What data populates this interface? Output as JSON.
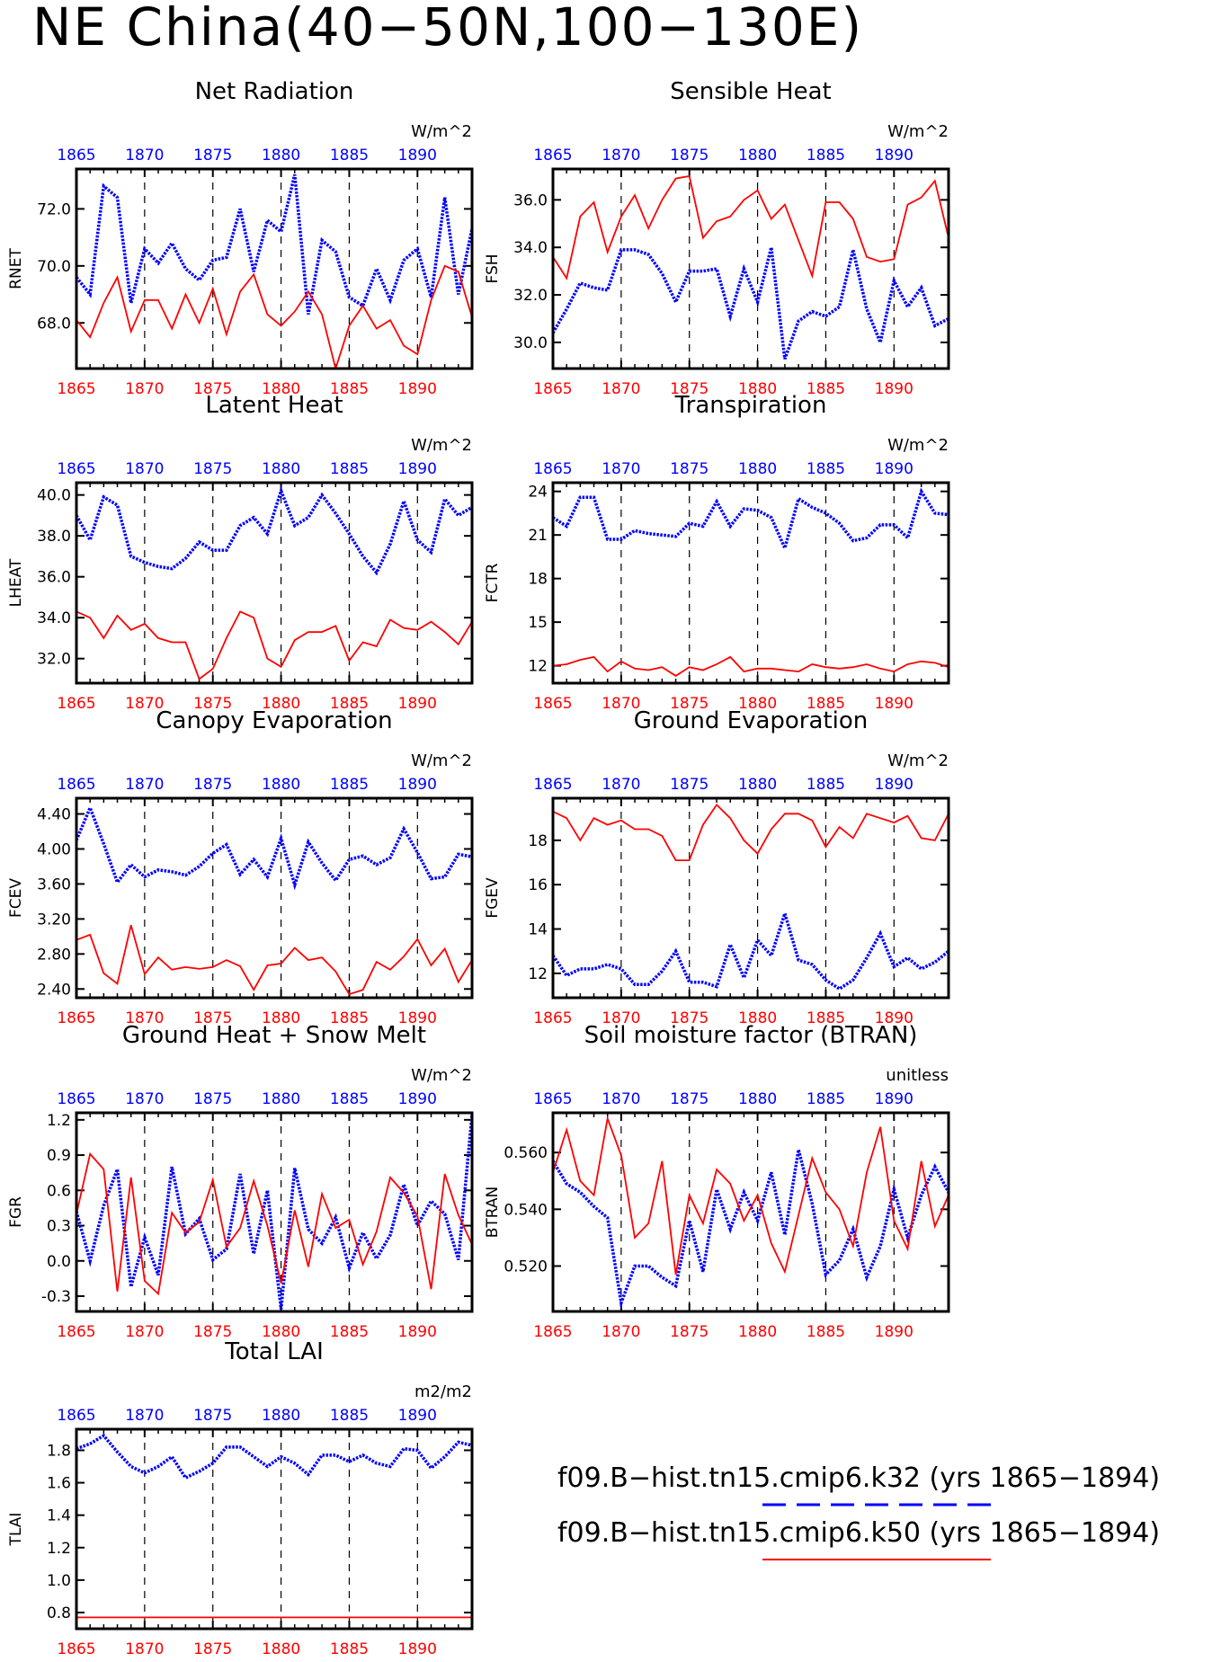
{
  "title": "NE China(40−50N,100−130E)",
  "colors": {
    "blue": "#0000ff",
    "red": "#ff0000",
    "axis": "#000000"
  },
  "legend": [
    {
      "label": "f09.B−hist.tn15.cmip6.k32 (yrs 1865−1894)",
      "color": "#0000ff",
      "style": "dashed"
    },
    {
      "label": "f09.B−hist.tn15.cmip6.k50 (yrs 1865−1894)",
      "color": "#ff0000",
      "style": "solid"
    }
  ],
  "chart_data": [
    {
      "type": "line",
      "title": "Net Radiation",
      "ylabel": "RNET",
      "units": "W/m^2",
      "xlim": [
        1865,
        1894
      ],
      "ylim": [
        66.4,
        73.4
      ],
      "yticks": [
        68.0,
        70.0,
        72.0
      ],
      "ytick_labels": [
        "68.0",
        "70.0",
        "72.0"
      ],
      "xticks": [
        1865,
        1870,
        1875,
        1880,
        1885,
        1890
      ],
      "series": [
        {
          "color": "blue",
          "values": [
            69.6,
            69.0,
            72.8,
            72.4,
            68.7,
            70.6,
            70.1,
            70.8,
            69.9,
            69.5,
            70.2,
            70.3,
            72.0,
            69.8,
            71.6,
            71.2,
            73.2,
            68.3,
            70.9,
            70.5,
            68.9,
            68.6,
            69.9,
            68.8,
            70.2,
            70.6,
            68.9,
            72.4,
            69.0,
            71.3
          ]
        },
        {
          "color": "red",
          "values": [
            68.1,
            67.5,
            68.7,
            69.6,
            67.7,
            68.8,
            68.8,
            67.8,
            69.0,
            68.0,
            69.2,
            67.6,
            69.1,
            69.7,
            68.3,
            67.9,
            68.4,
            69.1,
            68.3,
            66.4,
            67.9,
            68.6,
            67.8,
            68.1,
            67.2,
            66.9,
            68.8,
            70.0,
            69.8,
            68.2
          ]
        }
      ]
    },
    {
      "type": "line",
      "title": "Sensible Heat",
      "ylabel": "FSH",
      "units": "W/m^2",
      "xlim": [
        1865,
        1894
      ],
      "ylim": [
        28.9,
        37.3
      ],
      "yticks": [
        30.0,
        32.0,
        34.0,
        36.0
      ],
      "ytick_labels": [
        "30.0",
        "32.0",
        "34.0",
        "36.0"
      ],
      "xticks": [
        1865,
        1870,
        1875,
        1880,
        1885,
        1890
      ],
      "series": [
        {
          "color": "blue",
          "values": [
            30.4,
            31.4,
            32.5,
            32.3,
            32.2,
            33.9,
            33.9,
            33.7,
            32.9,
            31.7,
            33.0,
            33.0,
            33.1,
            31.1,
            33.1,
            31.7,
            34.0,
            29.3,
            30.9,
            31.3,
            31.1,
            31.5,
            33.9,
            31.4,
            30.0,
            32.6,
            31.5,
            32.3,
            30.7,
            31.0
          ]
        },
        {
          "color": "red",
          "values": [
            33.6,
            32.7,
            35.3,
            35.9,
            33.8,
            35.3,
            36.2,
            34.8,
            36.0,
            36.9,
            37.0,
            34.4,
            35.1,
            35.3,
            36.0,
            36.4,
            35.2,
            35.8,
            34.3,
            32.8,
            35.9,
            35.9,
            35.2,
            33.6,
            33.4,
            33.5,
            35.8,
            36.1,
            36.8,
            34.4
          ]
        }
      ]
    },
    {
      "type": "line",
      "title": "Latent Heat",
      "ylabel": "LHEAT",
      "units": "W/m^2",
      "xlim": [
        1865,
        1894
      ],
      "ylim": [
        30.8,
        40.6
      ],
      "yticks": [
        32.0,
        34.0,
        36.0,
        38.0,
        40.0
      ],
      "ytick_labels": [
        "32.0",
        "34.0",
        "36.0",
        "38.0",
        "40.0"
      ],
      "xticks": [
        1865,
        1870,
        1875,
        1880,
        1885,
        1890
      ],
      "series": [
        {
          "color": "blue",
          "values": [
            39.0,
            37.8,
            39.9,
            39.5,
            37.0,
            36.7,
            36.5,
            36.4,
            36.9,
            37.7,
            37.3,
            37.3,
            38.5,
            38.9,
            38.1,
            40.2,
            38.5,
            38.9,
            40.0,
            39.1,
            38.1,
            37.0,
            36.2,
            37.6,
            39.7,
            37.8,
            37.2,
            39.8,
            39.0,
            39.4
          ]
        },
        {
          "color": "red",
          "values": [
            34.3,
            34.0,
            33.0,
            34.1,
            33.4,
            33.7,
            33.0,
            32.8,
            32.8,
            31.0,
            31.5,
            33.0,
            34.3,
            34.0,
            32.0,
            31.6,
            32.9,
            33.3,
            33.3,
            33.6,
            31.9,
            32.8,
            32.6,
            33.9,
            33.5,
            33.4,
            33.8,
            33.3,
            32.7,
            33.8
          ]
        }
      ]
    },
    {
      "type": "line",
      "title": "Transpiration",
      "ylabel": "FCTR",
      "units": "W/m^2",
      "xlim": [
        1865,
        1894
      ],
      "ylim": [
        10.8,
        24.6
      ],
      "yticks": [
        12,
        15,
        18,
        21,
        24
      ],
      "ytick_labels": [
        "12",
        "15",
        "18",
        "21",
        "24"
      ],
      "xticks": [
        1865,
        1870,
        1875,
        1880,
        1885,
        1890
      ],
      "series": [
        {
          "color": "blue",
          "values": [
            22.2,
            21.6,
            23.6,
            23.6,
            20.7,
            20.7,
            21.3,
            21.1,
            21.0,
            20.9,
            21.8,
            21.6,
            23.3,
            21.6,
            22.8,
            22.7,
            22.2,
            20.1,
            23.5,
            22.9,
            22.5,
            21.8,
            20.6,
            20.8,
            21.7,
            21.7,
            20.8,
            24.0,
            22.5,
            22.4
          ]
        },
        {
          "color": "red",
          "values": [
            12.0,
            12.1,
            12.4,
            12.6,
            11.6,
            12.3,
            11.8,
            11.7,
            11.9,
            11.3,
            11.9,
            11.7,
            12.1,
            12.6,
            11.6,
            11.8,
            11.8,
            11.7,
            11.6,
            12.1,
            11.9,
            11.8,
            11.9,
            12.1,
            11.8,
            11.6,
            12.1,
            12.3,
            12.2,
            11.9
          ]
        }
      ]
    },
    {
      "type": "line",
      "title": "Canopy Evaporation",
      "ylabel": "FCEV",
      "units": "W/m^2",
      "xlim": [
        1865,
        1894
      ],
      "ylim": [
        2.3,
        4.58
      ],
      "yticks": [
        2.4,
        2.8,
        3.2,
        3.6,
        4.0,
        4.4
      ],
      "ytick_labels": [
        "2.40",
        "2.80",
        "3.20",
        "3.60",
        "4.00",
        "4.40"
      ],
      "xticks": [
        1865,
        1870,
        1875,
        1880,
        1885,
        1890
      ],
      "series": [
        {
          "color": "blue",
          "values": [
            4.1,
            4.47,
            4.06,
            3.62,
            3.82,
            3.68,
            3.76,
            3.74,
            3.7,
            3.8,
            3.95,
            4.05,
            3.71,
            3.88,
            3.68,
            4.12,
            3.59,
            4.08,
            3.84,
            3.64,
            3.88,
            3.92,
            3.82,
            3.9,
            4.23,
            3.96,
            3.66,
            3.68,
            3.94,
            3.91
          ]
        },
        {
          "color": "red",
          "values": [
            2.96,
            3.02,
            2.58,
            2.46,
            3.13,
            2.57,
            2.76,
            2.62,
            2.65,
            2.63,
            2.65,
            2.73,
            2.66,
            2.39,
            2.67,
            2.69,
            2.87,
            2.73,
            2.76,
            2.6,
            2.34,
            2.39,
            2.71,
            2.62,
            2.77,
            2.97,
            2.67,
            2.86,
            2.48,
            2.73
          ]
        }
      ]
    },
    {
      "type": "line",
      "title": "Ground Evaporation",
      "ylabel": "FGEV",
      "units": "W/m^2",
      "xlim": [
        1865,
        1894
      ],
      "ylim": [
        10.9,
        19.9
      ],
      "yticks": [
        12,
        14,
        16,
        18
      ],
      "ytick_labels": [
        "12",
        "14",
        "16",
        "18"
      ],
      "xticks": [
        1865,
        1870,
        1875,
        1880,
        1885,
        1890
      ],
      "series": [
        {
          "color": "blue",
          "values": [
            12.8,
            11.9,
            12.2,
            12.2,
            12.4,
            12.2,
            11.5,
            11.5,
            12.1,
            13.0,
            11.6,
            11.6,
            11.4,
            13.3,
            11.8,
            13.5,
            12.8,
            14.7,
            12.6,
            12.4,
            11.7,
            11.3,
            11.7,
            12.7,
            13.8,
            12.3,
            12.7,
            12.2,
            12.5,
            13.0
          ]
        },
        {
          "color": "red",
          "values": [
            19.3,
            19.0,
            18.0,
            19.0,
            18.7,
            18.9,
            18.5,
            18.5,
            18.2,
            17.1,
            17.1,
            18.7,
            19.6,
            19.0,
            18.0,
            17.4,
            18.5,
            19.2,
            19.2,
            18.9,
            17.7,
            18.6,
            18.1,
            19.2,
            19.0,
            18.8,
            19.1,
            18.1,
            18.0,
            19.2
          ]
        }
      ]
    },
    {
      "type": "line",
      "title": "Ground Heat + Snow Melt",
      "ylabel": "FGR",
      "units": "W/m^2",
      "xlim": [
        1865,
        1894
      ],
      "ylim": [
        -0.43,
        1.26
      ],
      "yticks": [
        -0.3,
        0.0,
        0.3,
        0.6,
        0.9,
        1.2
      ],
      "ytick_labels": [
        "-0.3",
        "0.0",
        "0.3",
        "0.6",
        "0.9",
        "1.2"
      ],
      "xticks": [
        1865,
        1870,
        1875,
        1880,
        1885,
        1890
      ],
      "series": [
        {
          "color": "blue",
          "values": [
            0.42,
            0.0,
            0.47,
            0.78,
            -0.22,
            0.2,
            -0.12,
            0.8,
            0.23,
            0.36,
            0.01,
            0.1,
            0.74,
            0.06,
            0.6,
            -0.41,
            0.79,
            0.27,
            0.15,
            0.37,
            -0.06,
            0.24,
            0.02,
            0.22,
            0.65,
            0.3,
            0.51,
            0.4,
            0.01,
            1.24
          ]
        },
        {
          "color": "red",
          "values": [
            0.4,
            0.91,
            0.78,
            -0.26,
            0.71,
            -0.17,
            -0.28,
            0.41,
            0.24,
            0.33,
            0.69,
            0.12,
            0.28,
            0.68,
            0.3,
            -0.19,
            0.43,
            -0.05,
            0.57,
            0.28,
            0.35,
            -0.03,
            0.25,
            0.71,
            0.58,
            0.38,
            -0.24,
            0.74,
            0.39,
            0.14
          ]
        }
      ]
    },
    {
      "type": "line",
      "title": "Soil moisture factor (BTRAN)",
      "ylabel": "BTRAN",
      "units": "unitless",
      "xlim": [
        1865,
        1894
      ],
      "ylim": [
        0.504,
        0.574
      ],
      "yticks": [
        0.52,
        0.54,
        0.56
      ],
      "ytick_labels": [
        "0.520",
        "0.540",
        "0.560"
      ],
      "xticks": [
        1865,
        1870,
        1875,
        1880,
        1885,
        1890
      ],
      "series": [
        {
          "color": "blue",
          "values": [
            0.557,
            0.549,
            0.546,
            0.541,
            0.537,
            0.507,
            0.52,
            0.52,
            0.516,
            0.513,
            0.536,
            0.518,
            0.547,
            0.533,
            0.546,
            0.536,
            0.553,
            0.531,
            0.561,
            0.542,
            0.517,
            0.522,
            0.533,
            0.516,
            0.527,
            0.547,
            0.53,
            0.545,
            0.555,
            0.546
          ]
        },
        {
          "color": "red",
          "values": [
            0.553,
            0.568,
            0.55,
            0.545,
            0.572,
            0.559,
            0.53,
            0.535,
            0.557,
            0.517,
            0.545,
            0.535,
            0.554,
            0.549,
            0.536,
            0.545,
            0.528,
            0.518,
            0.538,
            0.558,
            0.546,
            0.54,
            0.527,
            0.553,
            0.569,
            0.536,
            0.526,
            0.557,
            0.534,
            0.545
          ]
        }
      ]
    },
    {
      "type": "line",
      "title": "Total LAI",
      "ylabel": "TLAI",
      "units": "m2/m2",
      "xlim": [
        1865,
        1894
      ],
      "ylim": [
        0.7,
        1.93
      ],
      "yticks": [
        0.8,
        1.0,
        1.2,
        1.4,
        1.6,
        1.8
      ],
      "ytick_labels": [
        "0.8",
        "1.0",
        "1.2",
        "1.4",
        "1.6",
        "1.8"
      ],
      "xticks": [
        1865,
        1870,
        1875,
        1880,
        1885,
        1890
      ],
      "series": [
        {
          "color": "blue",
          "values": [
            1.81,
            1.84,
            1.89,
            1.79,
            1.7,
            1.66,
            1.7,
            1.76,
            1.63,
            1.67,
            1.72,
            1.82,
            1.82,
            1.76,
            1.7,
            1.76,
            1.72,
            1.65,
            1.77,
            1.77,
            1.73,
            1.77,
            1.72,
            1.7,
            1.81,
            1.8,
            1.69,
            1.76,
            1.85,
            1.83
          ]
        },
        {
          "color": "red",
          "values": [
            0.77,
            0.77,
            0.77,
            0.77,
            0.77,
            0.77,
            0.77,
            0.77,
            0.77,
            0.77,
            0.77,
            0.77,
            0.77,
            0.77,
            0.77,
            0.77,
            0.77,
            0.77,
            0.77,
            0.77,
            0.77,
            0.77,
            0.77,
            0.77,
            0.77,
            0.77,
            0.77,
            0.77,
            0.77,
            0.77
          ]
        }
      ]
    }
  ]
}
